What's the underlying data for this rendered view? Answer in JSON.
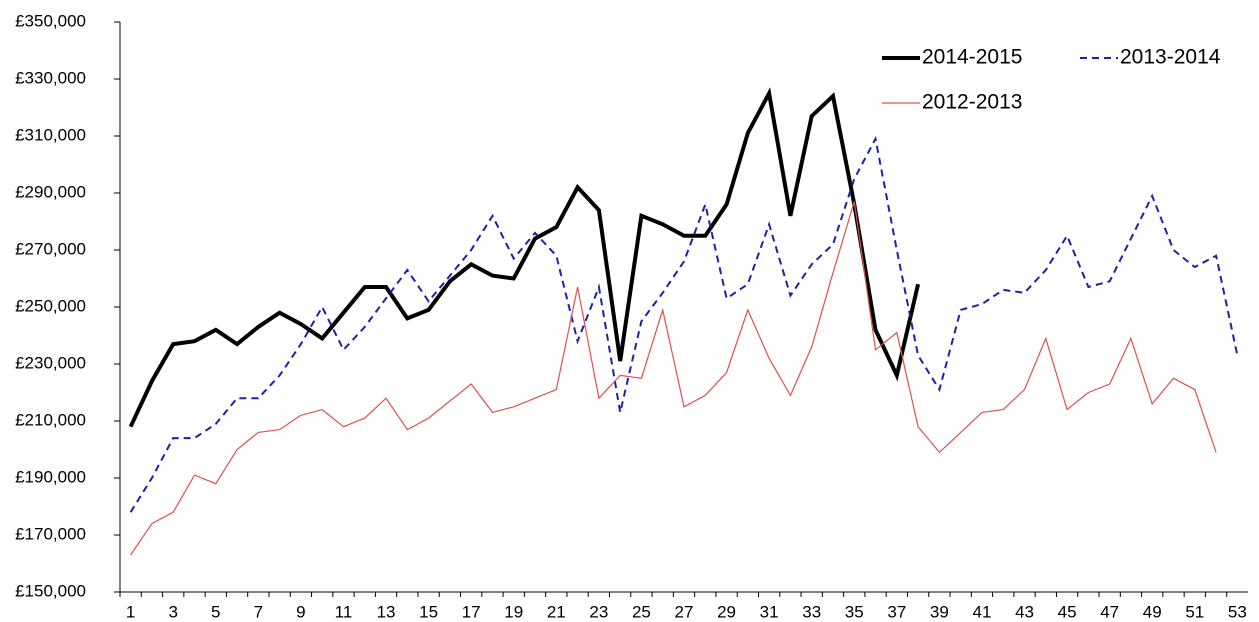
{
  "chart_data": {
    "type": "line",
    "categories": [
      1,
      null,
      3,
      null,
      5,
      null,
      7,
      null,
      9,
      null,
      11,
      null,
      13,
      null,
      15,
      null,
      17,
      null,
      19,
      null,
      21,
      null,
      23,
      null,
      25,
      null,
      27,
      null,
      29,
      null,
      31,
      null,
      33,
      null,
      35,
      null,
      37,
      null,
      39,
      null,
      41,
      null,
      43,
      null,
      45,
      null,
      47,
      null,
      49,
      null,
      51,
      null,
      53
    ],
    "series": [
      {
        "name": "2014-2015",
        "color": "#000000",
        "width": 4,
        "dash": false,
        "values": [
          208000,
          224000,
          237000,
          238000,
          242000,
          237000,
          243000,
          248000,
          244000,
          239000,
          248000,
          257000,
          257000,
          246000,
          249000,
          259000,
          265000,
          261000,
          260000,
          274000,
          278000,
          292000,
          284000,
          231000,
          282000,
          279000,
          275000,
          275000,
          286000,
          311000,
          325000,
          282000,
          317000,
          324000,
          286000,
          242000,
          226000,
          258000,
          null,
          null,
          null,
          null,
          null,
          null,
          null,
          null,
          null,
          null,
          null,
          null,
          null,
          null,
          null
        ]
      },
      {
        "name": "2013-2014",
        "color": "#1f1fa8",
        "width": 2,
        "dash": true,
        "values": [
          178000,
          190000,
          204000,
          204000,
          209000,
          218000,
          218000,
          226000,
          237000,
          250000,
          235000,
          243000,
          253000,
          263000,
          252000,
          261000,
          270000,
          282000,
          267000,
          276000,
          268000,
          238000,
          257000,
          213000,
          245000,
          255000,
          266000,
          286000,
          253000,
          258000,
          279000,
          254000,
          265000,
          272000,
          295000,
          309000,
          270000,
          233000,
          221000,
          249000,
          251000,
          256000,
          255000,
          263000,
          275000,
          257000,
          259000,
          274000,
          289000,
          270000,
          264000,
          268000,
          233000
        ]
      },
      {
        "name": "2012-2013",
        "color": "#d9534f",
        "width": 1.2,
        "dash": false,
        "values": [
          163000,
          174000,
          178000,
          191000,
          188000,
          200000,
          206000,
          207000,
          212000,
          214000,
          208000,
          211000,
          218000,
          207000,
          211000,
          217000,
          223000,
          213000,
          215000,
          218000,
          221000,
          257000,
          218000,
          226000,
          225000,
          249000,
          215000,
          219000,
          227000,
          249000,
          232000,
          219000,
          236000,
          262000,
          287000,
          235000,
          241000,
          208000,
          199000,
          206000,
          213000,
          214000,
          221000,
          239000,
          214000,
          220000,
          223000,
          239000,
          216000,
          225000,
          221000,
          199000,
          null
        ]
      }
    ],
    "ylim": [
      150000,
      350000
    ],
    "yticks": [
      {
        "value": 150000,
        "label": "£150,000"
      },
      {
        "value": 170000,
        "label": "£170,000"
      },
      {
        "value": 190000,
        "label": "£190,000"
      },
      {
        "value": 210000,
        "label": "£210,000"
      },
      {
        "value": 230000,
        "label": "£230,000"
      },
      {
        "value": 250000,
        "label": "£250,000"
      },
      {
        "value": 270000,
        "label": "£270,000"
      },
      {
        "value": 290000,
        "label": "£290,000"
      },
      {
        "value": 310000,
        "label": "£310,000"
      },
      {
        "value": 330000,
        "label": "£330,000"
      },
      {
        "value": 350000,
        "label": "£350,000"
      }
    ],
    "grid": false,
    "legend": "top-right"
  }
}
